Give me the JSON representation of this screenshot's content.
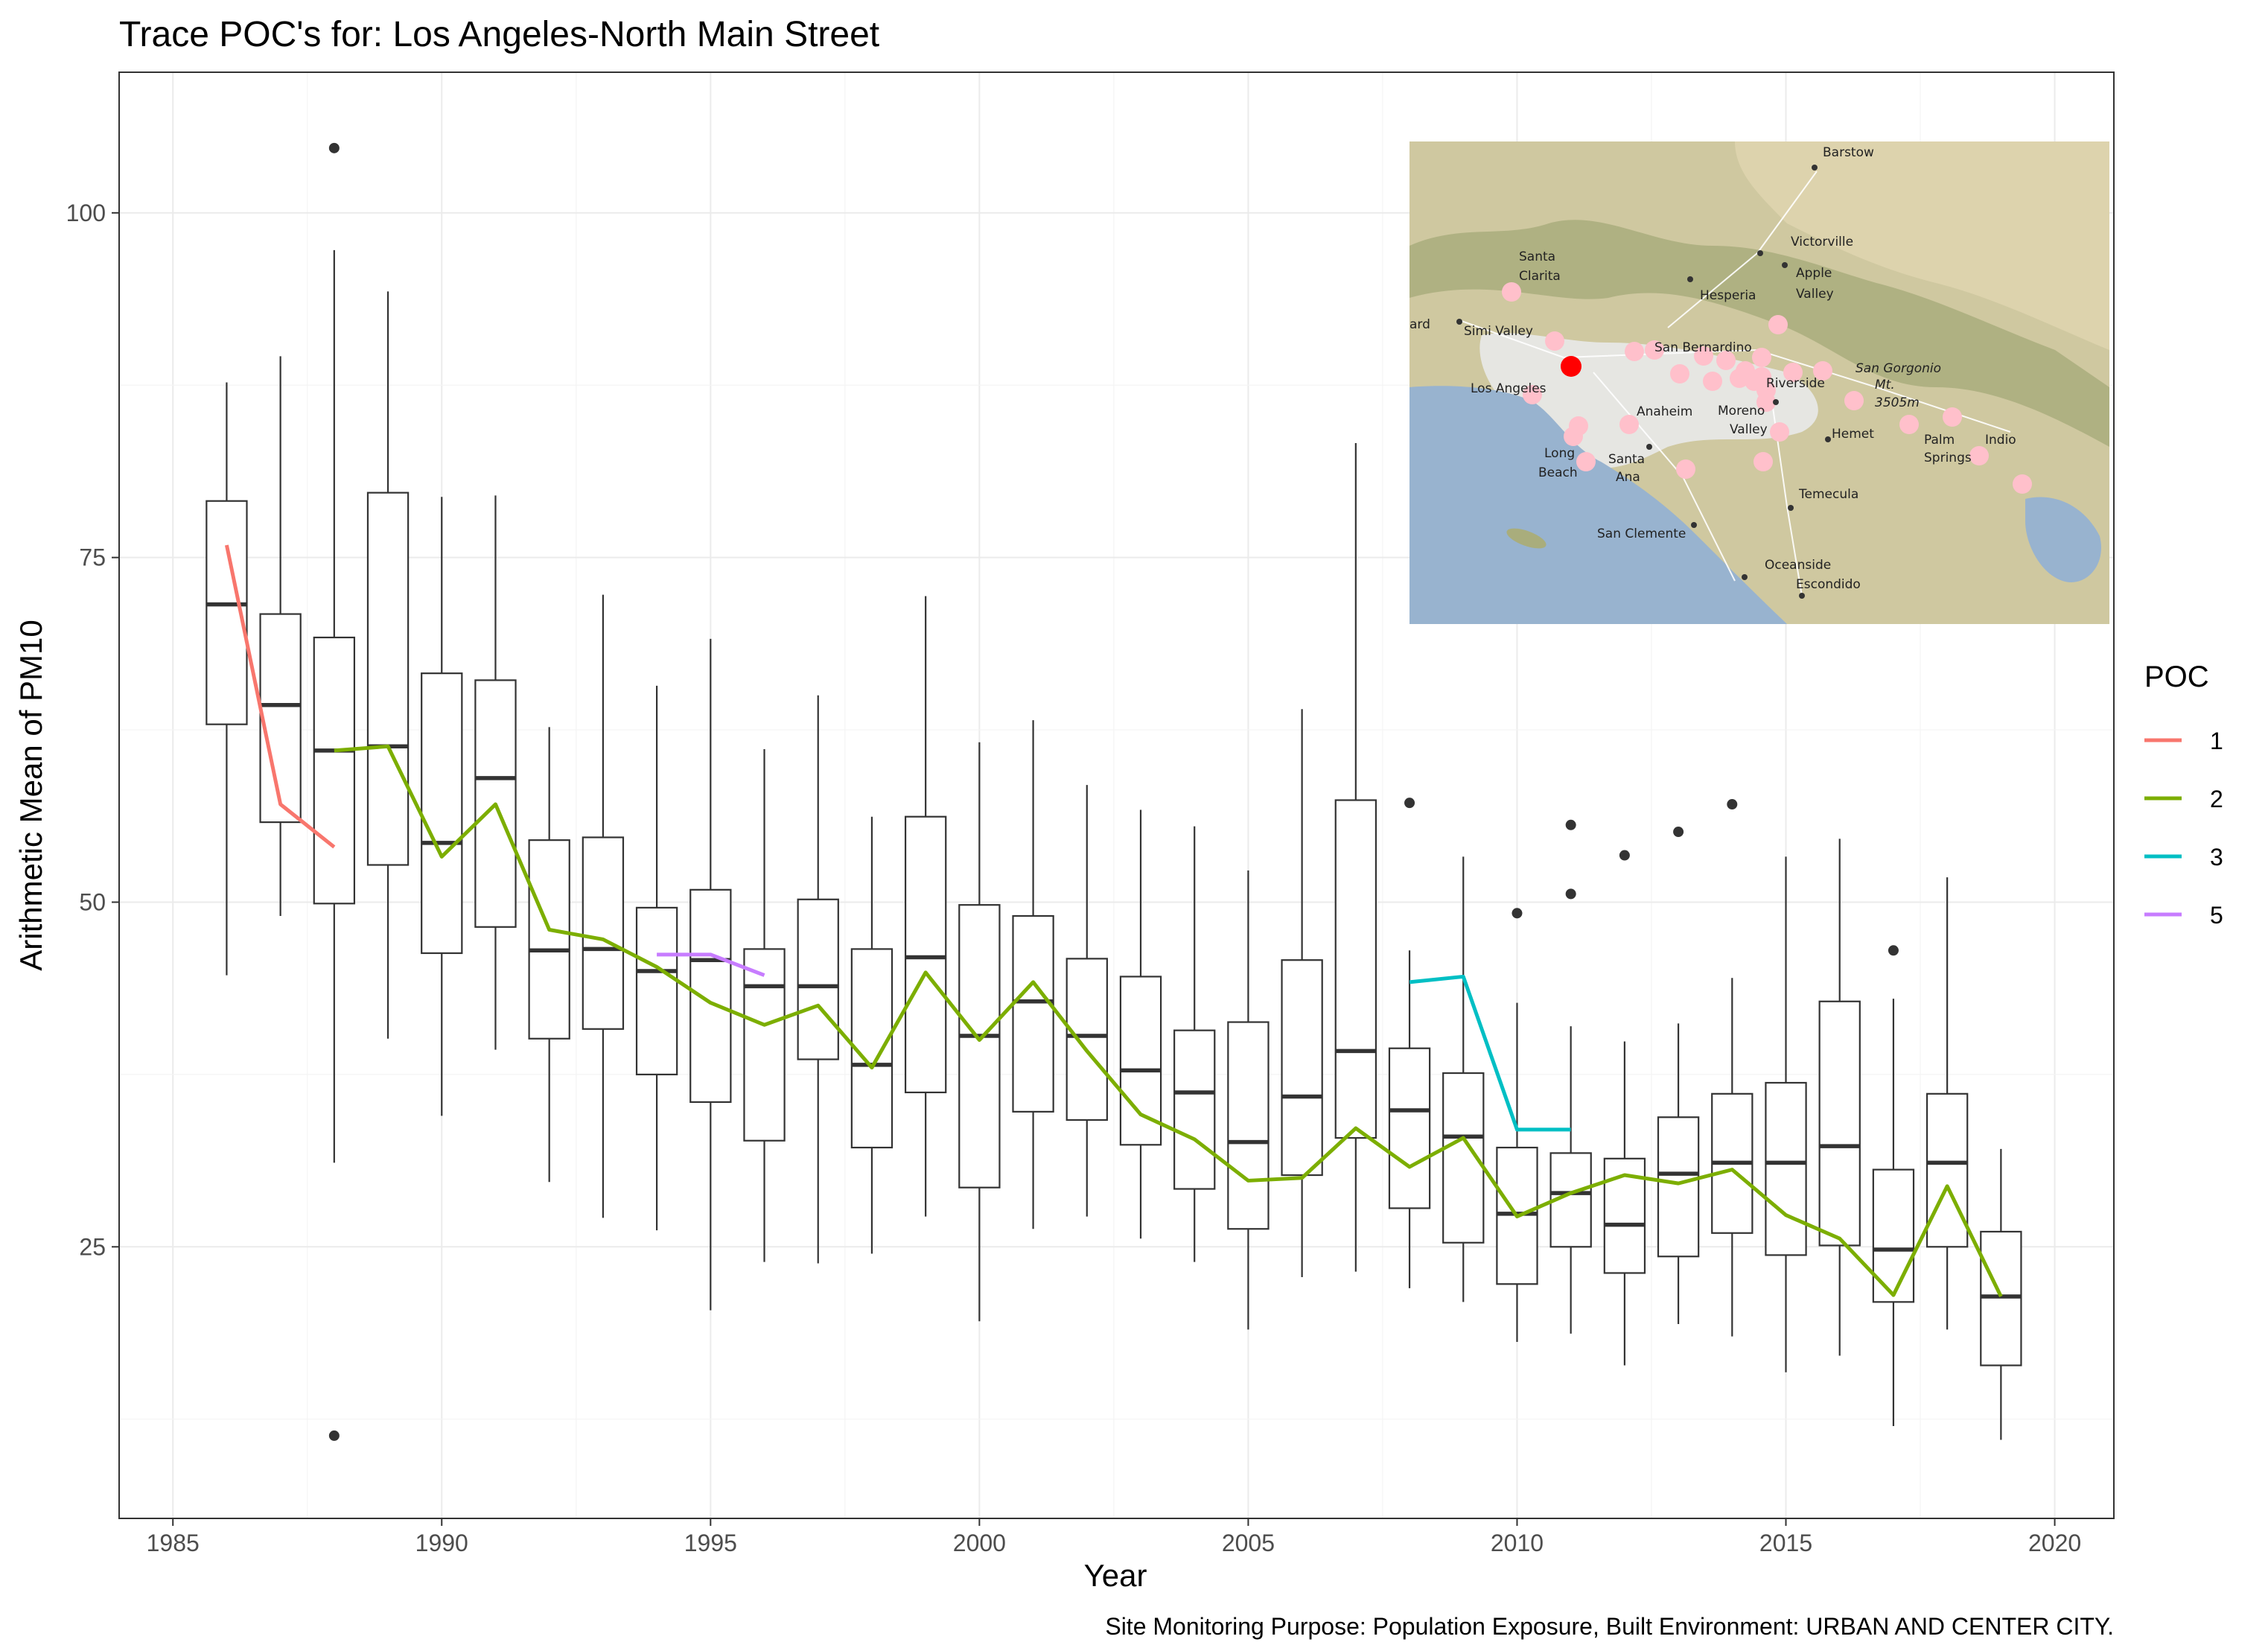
{
  "chart_data": {
    "type": "boxplot",
    "title": "Trace POC's for: Los Angeles-North Main Street",
    "xlabel": "Year",
    "ylabel": "Arithmetic Mean of PM10",
    "caption": "Site Monitoring Purpose: Population Exposure, Built Environment: URBAN AND CENTER CITY.",
    "xlim": [
      1984,
      2021.1
    ],
    "ylim": [
      5.3,
      110.2
    ],
    "x_ticks": [
      1985,
      1990,
      1995,
      2000,
      2005,
      2010,
      2015,
      2020
    ],
    "y_ticks": [
      25,
      50,
      75,
      100
    ],
    "grid": true,
    "legend": {
      "title": "POC",
      "placement": "right"
    },
    "boxes": [
      {
        "year": 1986,
        "low": 44.7,
        "q1": 62.9,
        "median": 71.6,
        "q3": 79.1,
        "high": 87.7,
        "outliers": []
      },
      {
        "year": 1987,
        "low": 49.0,
        "q1": 55.8,
        "median": 64.3,
        "q3": 70.9,
        "high": 89.6,
        "outliers": []
      },
      {
        "year": 1988,
        "low": 31.1,
        "q1": 49.9,
        "median": 61.0,
        "q3": 69.2,
        "high": 97.3,
        "outliers": [
          104.7,
          11.3
        ]
      },
      {
        "year": 1989,
        "low": 40.1,
        "q1": 52.7,
        "median": 61.3,
        "q3": 79.7,
        "high": 94.3,
        "outliers": []
      },
      {
        "year": 1990,
        "low": 34.5,
        "q1": 46.3,
        "median": 54.3,
        "q3": 66.6,
        "high": 79.4,
        "outliers": []
      },
      {
        "year": 1991,
        "low": 39.3,
        "q1": 48.2,
        "median": 59.0,
        "q3": 66.1,
        "high": 79.5,
        "outliers": []
      },
      {
        "year": 1992,
        "low": 29.7,
        "q1": 40.1,
        "median": 46.5,
        "q3": 54.5,
        "high": 62.7,
        "outliers": []
      },
      {
        "year": 1993,
        "low": 27.1,
        "q1": 40.8,
        "median": 46.6,
        "q3": 54.7,
        "high": 72.3,
        "outliers": []
      },
      {
        "year": 1994,
        "low": 26.2,
        "q1": 37.5,
        "median": 45.0,
        "q3": 49.6,
        "high": 65.7,
        "outliers": []
      },
      {
        "year": 1995,
        "low": 20.4,
        "q1": 35.5,
        "median": 45.8,
        "q3": 50.9,
        "high": 69.1,
        "outliers": []
      },
      {
        "year": 1996,
        "low": 23.9,
        "q1": 32.7,
        "median": 43.9,
        "q3": 46.6,
        "high": 61.1,
        "outliers": []
      },
      {
        "year": 1997,
        "low": 23.8,
        "q1": 38.6,
        "median": 43.9,
        "q3": 50.2,
        "high": 65.0,
        "outliers": []
      },
      {
        "year": 1998,
        "low": 24.5,
        "q1": 32.2,
        "median": 38.2,
        "q3": 46.6,
        "high": 56.2,
        "outliers": []
      },
      {
        "year": 1999,
        "low": 27.2,
        "q1": 36.2,
        "median": 46.0,
        "q3": 56.2,
        "high": 72.2,
        "outliers": []
      },
      {
        "year": 2000,
        "low": 19.6,
        "q1": 29.3,
        "median": 40.3,
        "q3": 49.8,
        "high": 61.6,
        "outliers": []
      },
      {
        "year": 2001,
        "low": 26.3,
        "q1": 34.8,
        "median": 42.8,
        "q3": 49.0,
        "high": 63.2,
        "outliers": []
      },
      {
        "year": 2002,
        "low": 27.2,
        "q1": 34.2,
        "median": 40.3,
        "q3": 45.9,
        "high": 58.5,
        "outliers": []
      },
      {
        "year": 2003,
        "low": 25.6,
        "q1": 32.4,
        "median": 37.8,
        "q3": 44.6,
        "high": 56.7,
        "outliers": []
      },
      {
        "year": 2004,
        "low": 23.9,
        "q1": 29.2,
        "median": 36.2,
        "q3": 40.7,
        "high": 55.5,
        "outliers": []
      },
      {
        "year": 2005,
        "low": 19.0,
        "q1": 26.3,
        "median": 32.6,
        "q3": 41.3,
        "high": 52.3,
        "outliers": []
      },
      {
        "year": 2006,
        "low": 22.8,
        "q1": 30.2,
        "median": 35.9,
        "q3": 45.8,
        "high": 64.0,
        "outliers": []
      },
      {
        "year": 2007,
        "low": 23.2,
        "q1": 32.9,
        "median": 39.2,
        "q3": 57.4,
        "high": 83.3,
        "outliers": []
      },
      {
        "year": 2008,
        "low": 22.0,
        "q1": 27.8,
        "median": 34.9,
        "q3": 39.4,
        "high": 46.5,
        "outliers": [
          57.2
        ]
      },
      {
        "year": 2009,
        "low": 21.0,
        "q1": 25.3,
        "median": 33.0,
        "q3": 37.6,
        "high": 53.3,
        "outliers": []
      },
      {
        "year": 2010,
        "low": 18.1,
        "q1": 22.3,
        "median": 27.4,
        "q3": 32.2,
        "high": 42.7,
        "outliers": [
          49.2
        ]
      },
      {
        "year": 2011,
        "low": 18.7,
        "q1": 25.0,
        "median": 28.9,
        "q3": 31.8,
        "high": 41.0,
        "outliers": [
          55.6,
          50.6
        ]
      },
      {
        "year": 2012,
        "low": 16.4,
        "q1": 23.1,
        "median": 26.6,
        "q3": 31.4,
        "high": 39.9,
        "outliers": [
          53.4
        ]
      },
      {
        "year": 2013,
        "low": 19.4,
        "q1": 24.3,
        "median": 30.3,
        "q3": 34.4,
        "high": 41.2,
        "outliers": [
          55.1
        ]
      },
      {
        "year": 2014,
        "low": 18.5,
        "q1": 26.0,
        "median": 31.1,
        "q3": 36.1,
        "high": 44.5,
        "outliers": [
          57.1
        ]
      },
      {
        "year": 2015,
        "low": 15.9,
        "q1": 24.4,
        "median": 31.1,
        "q3": 36.9,
        "high": 53.3,
        "outliers": []
      },
      {
        "year": 2016,
        "low": 17.1,
        "q1": 25.1,
        "median": 32.3,
        "q3": 42.8,
        "high": 54.6,
        "outliers": []
      },
      {
        "year": 2017,
        "low": 12.0,
        "q1": 21.0,
        "median": 24.8,
        "q3": 30.6,
        "high": 43.0,
        "outliers": [
          46.5
        ]
      },
      {
        "year": 2018,
        "low": 19.0,
        "q1": 25.0,
        "median": 31.1,
        "q3": 36.1,
        "high": 51.8,
        "outliers": []
      },
      {
        "year": 2019,
        "low": 11.0,
        "q1": 16.4,
        "median": 21.4,
        "q3": 26.1,
        "high": 32.1,
        "outliers": []
      }
    ],
    "series": [
      {
        "name": "1",
        "color": "#F8766D",
        "x": [
          1986,
          1987,
          1988
        ],
        "y": [
          75.9,
          57.1,
          54.0
        ]
      },
      {
        "name": "2",
        "color": "#7CAE00",
        "x": [
          1988,
          1989,
          1990,
          1991,
          1992,
          1993,
          1994,
          1995,
          1996,
          1997,
          1998,
          1999,
          2000,
          2001,
          2002,
          2003,
          2004,
          2005,
          2006,
          2007,
          2008,
          2009,
          2010,
          2011,
          2012,
          2013,
          2014,
          2015,
          2016,
          2017,
          2018,
          2019
        ],
        "y": [
          61.0,
          61.3,
          53.3,
          57.1,
          48.0,
          47.3,
          45.3,
          42.7,
          41.1,
          42.5,
          38.0,
          44.9,
          40.0,
          44.2,
          39.2,
          34.6,
          32.8,
          29.8,
          30.0,
          33.6,
          30.8,
          32.9,
          27.2,
          28.9,
          30.2,
          29.6,
          30.6,
          27.3,
          25.6,
          21.5,
          29.4,
          21.4
        ]
      },
      {
        "name": "3",
        "color": "#00BFC4",
        "x": [
          2008,
          2009,
          2010,
          2011
        ],
        "y": [
          44.2,
          44.6,
          33.5,
          33.5
        ]
      },
      {
        "name": "5",
        "color": "#C77CFF",
        "x": [
          1994,
          1995,
          1996
        ],
        "y": [
          46.2,
          46.2,
          44.7
        ]
      }
    ]
  },
  "inset_map": {
    "labels": [
      {
        "text": "Barstow",
        "italic": false
      },
      {
        "text": "Victorville",
        "italic": false
      },
      {
        "text": "Apple",
        "italic": false
      },
      {
        "text": "Valley",
        "italic": false
      },
      {
        "text": "Santa",
        "italic": false
      },
      {
        "text": "Clarita",
        "italic": false
      },
      {
        "text": "Hesperia",
        "italic": false
      },
      {
        "text": "ard",
        "italic": false
      },
      {
        "text": "Simi Valley",
        "italic": false
      },
      {
        "text": "San Bernardino",
        "italic": false
      },
      {
        "text": "San Gorgonio",
        "italic": true
      },
      {
        "text": "Mt.",
        "italic": true
      },
      {
        "text": "3505m",
        "italic": true
      },
      {
        "text": "Los Angeles",
        "italic": false
      },
      {
        "text": "Riverside",
        "italic": false
      },
      {
        "text": "Anaheim",
        "italic": false
      },
      {
        "text": "Moreno",
        "italic": false
      },
      {
        "text": "Valley",
        "italic": false
      },
      {
        "text": "Hemet",
        "italic": false
      },
      {
        "text": "Palm",
        "italic": false
      },
      {
        "text": "Springs",
        "italic": false
      },
      {
        "text": "Indio",
        "italic": false
      },
      {
        "text": "Long",
        "italic": false
      },
      {
        "text": "Beach",
        "italic": false
      },
      {
        "text": "Santa",
        "italic": false
      },
      {
        "text": "Ana",
        "italic": false
      },
      {
        "text": "Temecula",
        "italic": false
      },
      {
        "text": "San Clemente",
        "italic": false
      },
      {
        "text": "Oceanside",
        "italic": false
      },
      {
        "text": "Escondido",
        "italic": false
      }
    ],
    "highlight_color": "#FF0000",
    "site_color": "#FFC0CB"
  }
}
